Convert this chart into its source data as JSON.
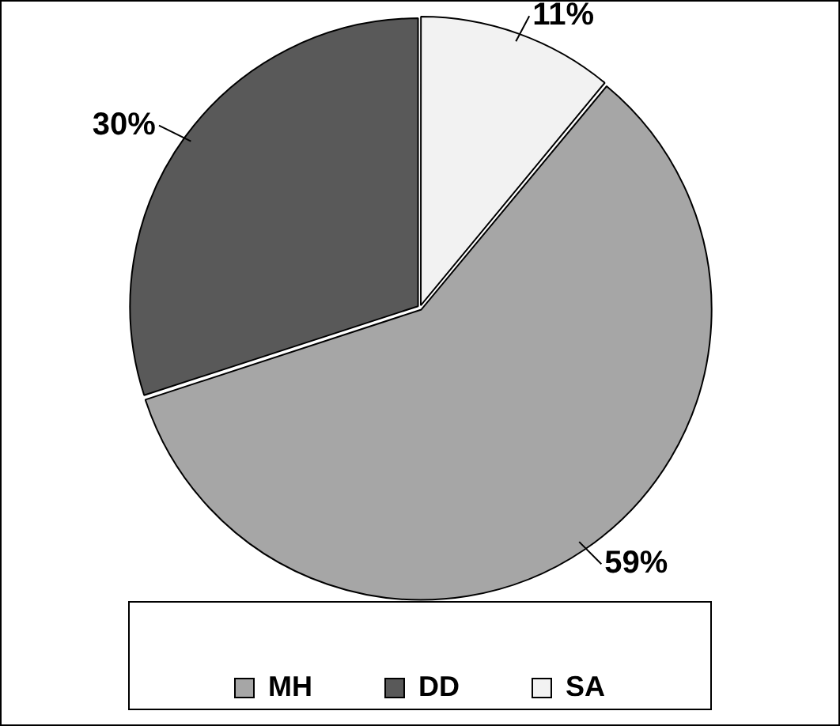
{
  "chart_data": {
    "type": "pie",
    "categories": [
      "MH",
      "DD",
      "SA"
    ],
    "values": [
      59,
      30,
      11
    ],
    "value_labels": [
      "59%",
      "30%",
      "11%"
    ],
    "colors": [
      "#a6a6a6",
      "#595959",
      "#f2f2f2"
    ],
    "legend": "bottom"
  }
}
